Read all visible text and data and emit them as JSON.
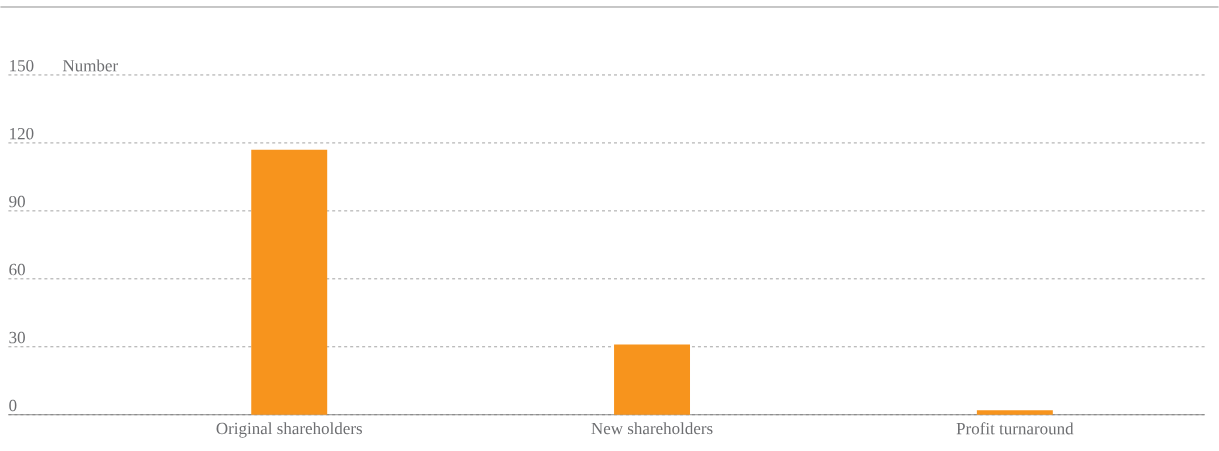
{
  "chart_data": {
    "type": "bar",
    "ylabel": "Number",
    "categories": [
      "Original shareholders",
      "New shareholders",
      "Profit turnaround"
    ],
    "values": [
      117,
      31,
      2
    ],
    "color": "#f7941d",
    "ylim": [
      0,
      180
    ],
    "yticks": [
      0,
      30,
      60,
      90,
      120,
      150
    ],
    "grid": "y"
  }
}
